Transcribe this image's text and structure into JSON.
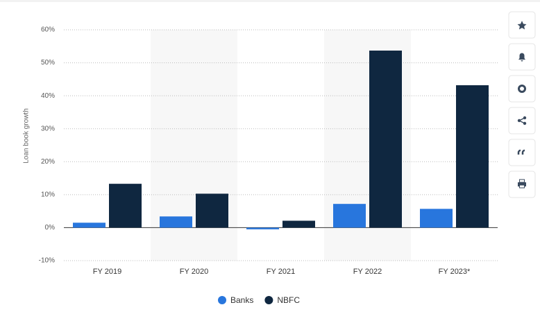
{
  "chart_data": {
    "type": "bar",
    "y_label": "Loan book growth",
    "categories": [
      "FY 2019",
      "FY 2020",
      "FY 2021",
      "FY 2022",
      "FY 2023*"
    ],
    "series": [
      {
        "name": "Banks",
        "color": "#2876dd",
        "values": [
          1.5,
          3.4,
          -0.5,
          7.2,
          5.7
        ]
      },
      {
        "name": "NBFC",
        "color": "#0f2740",
        "values": [
          13.3,
          10.3,
          2.1,
          53.7,
          43.2
        ]
      }
    ],
    "ylim": [
      -10,
      60
    ],
    "yticks": [
      {
        "value": -10,
        "label": "-10%"
      },
      {
        "value": 0,
        "label": "0%"
      },
      {
        "value": 10,
        "label": "10%"
      },
      {
        "value": 20,
        "label": "20%"
      },
      {
        "value": 30,
        "label": "30%"
      },
      {
        "value": 40,
        "label": "40%"
      },
      {
        "value": 50,
        "label": "50%"
      },
      {
        "value": 60,
        "label": "60%"
      }
    ],
    "grid": true
  }
}
